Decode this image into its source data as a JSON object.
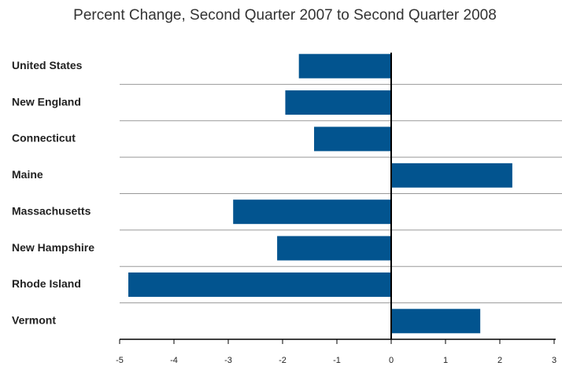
{
  "chart_data": {
    "type": "bar",
    "orientation": "horizontal",
    "title": "Percent Change, Second Quarter 2007 to Second Quarter 2008",
    "categories": [
      "United States",
      "New England",
      "Connecticut",
      "Maine",
      "Massachusetts",
      "New Hampshire",
      "Rhode Island",
      "Vermont"
    ],
    "values": [
      -1.7,
      -1.95,
      -1.42,
      2.23,
      -2.91,
      -2.1,
      -4.84,
      1.64
    ],
    "color": "#02548f",
    "xlim": [
      -5,
      3
    ],
    "xticks": [
      -5,
      -4,
      -3,
      -2,
      -1,
      0,
      1,
      2,
      3
    ]
  }
}
